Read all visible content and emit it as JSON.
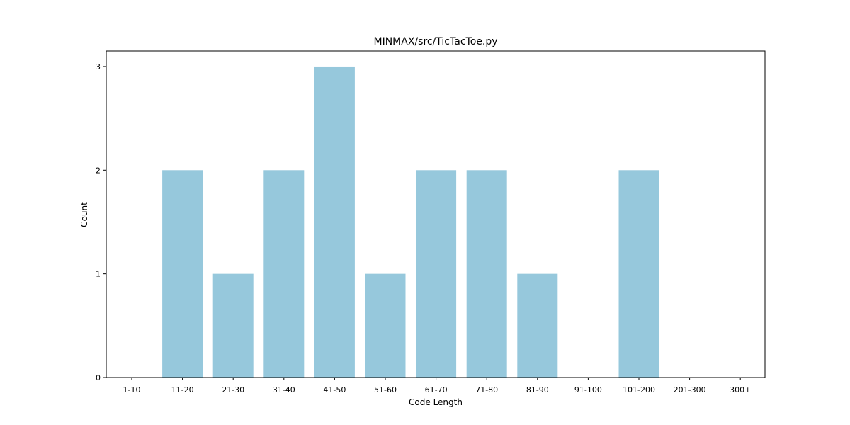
{
  "chart_data": {
    "type": "bar",
    "title": "MINMAX/src/TicTacToe.py",
    "xlabel": "Code Length",
    "ylabel": "Count",
    "categories": [
      "1-10",
      "11-20",
      "21-30",
      "31-40",
      "41-50",
      "51-60",
      "61-70",
      "71-80",
      "81-90",
      "91-100",
      "101-200",
      "201-300",
      "300+"
    ],
    "values": [
      0,
      2,
      1,
      2,
      3,
      1,
      2,
      2,
      1,
      0,
      2,
      0,
      0
    ],
    "ylim": [
      0,
      3.15
    ],
    "yticks": [
      0,
      1,
      2,
      3
    ],
    "bar_color": "#96c8dc",
    "grid": false,
    "legend": "none"
  }
}
